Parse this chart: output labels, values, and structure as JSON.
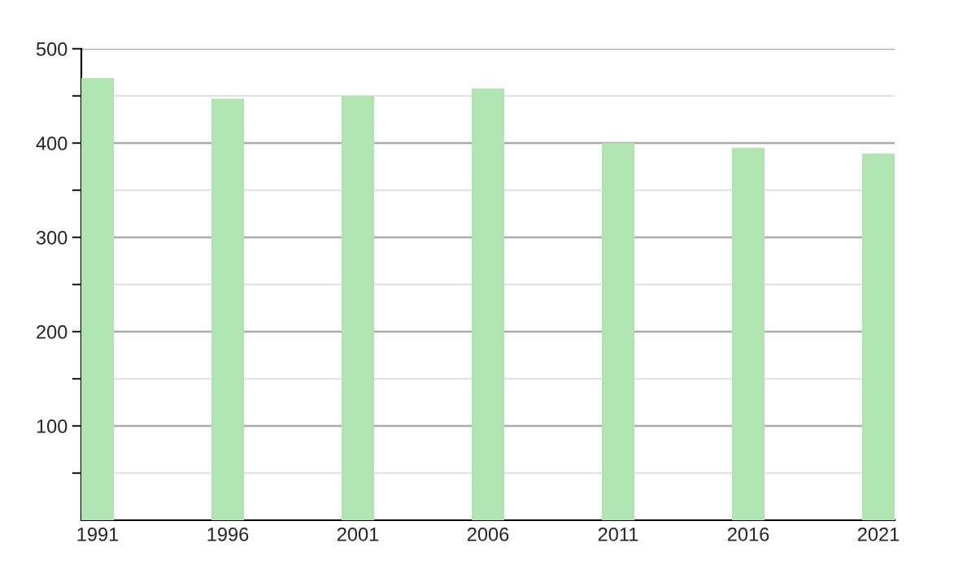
{
  "chart_data": {
    "type": "bar",
    "categories": [
      "1991",
      "1996",
      "2001",
      "2006",
      "2011",
      "2016",
      "2021"
    ],
    "values": [
      469,
      447,
      450,
      458,
      400,
      395,
      389
    ],
    "color": "#b0e4b0",
    "ylim": [
      0,
      500
    ],
    "yticks": [
      {
        "value": 50,
        "label": null
      },
      100,
      {
        "value": 150,
        "label": null
      },
      200,
      {
        "value": 250,
        "label": null
      },
      300,
      {
        "value": 350,
        "label": null
      },
      400,
      {
        "value": 450,
        "label": null
      },
      500
    ],
    "grid": "y",
    "legend": false
  }
}
